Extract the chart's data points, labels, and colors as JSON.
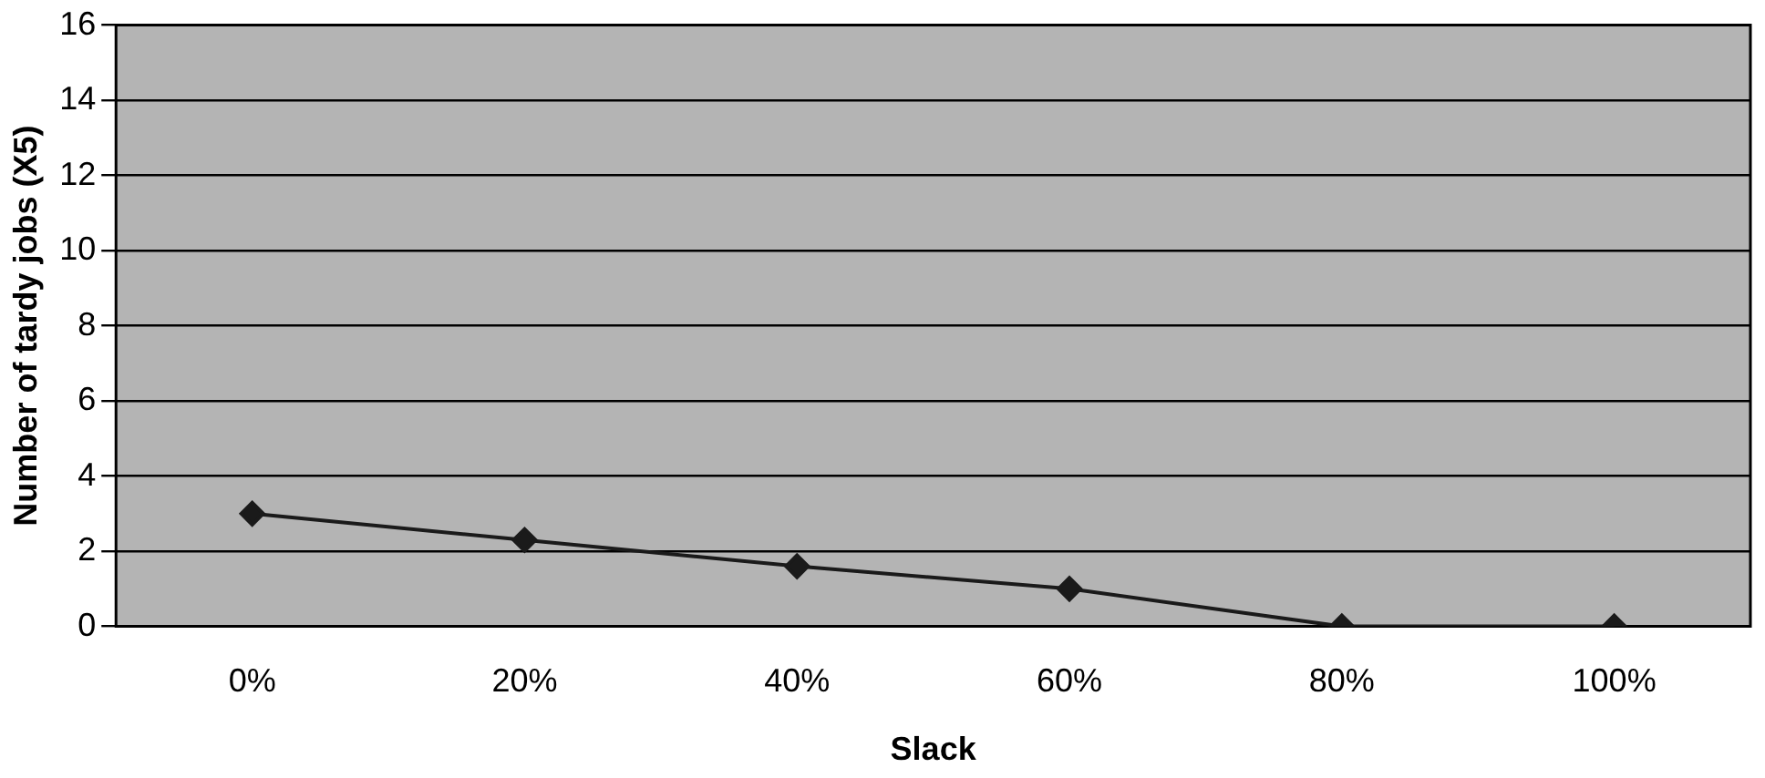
{
  "chart_data": {
    "type": "line",
    "xlabel": "Slack",
    "ylabel": "Number of tardy jobs (X5)",
    "categories": [
      "0%",
      "20%",
      "40%",
      "60%",
      "80%",
      "100%"
    ],
    "series": [
      {
        "color": "#1a1a1a",
        "values": [
          3,
          2.3,
          1.6,
          1,
          0,
          0
        ]
      }
    ],
    "ylim": [
      0,
      16
    ],
    "yticks": [
      0,
      2,
      4,
      6,
      8,
      10,
      12,
      14,
      16
    ],
    "grid": "y",
    "marker": "diamond",
    "line_style": "solid",
    "legend": false
  }
}
